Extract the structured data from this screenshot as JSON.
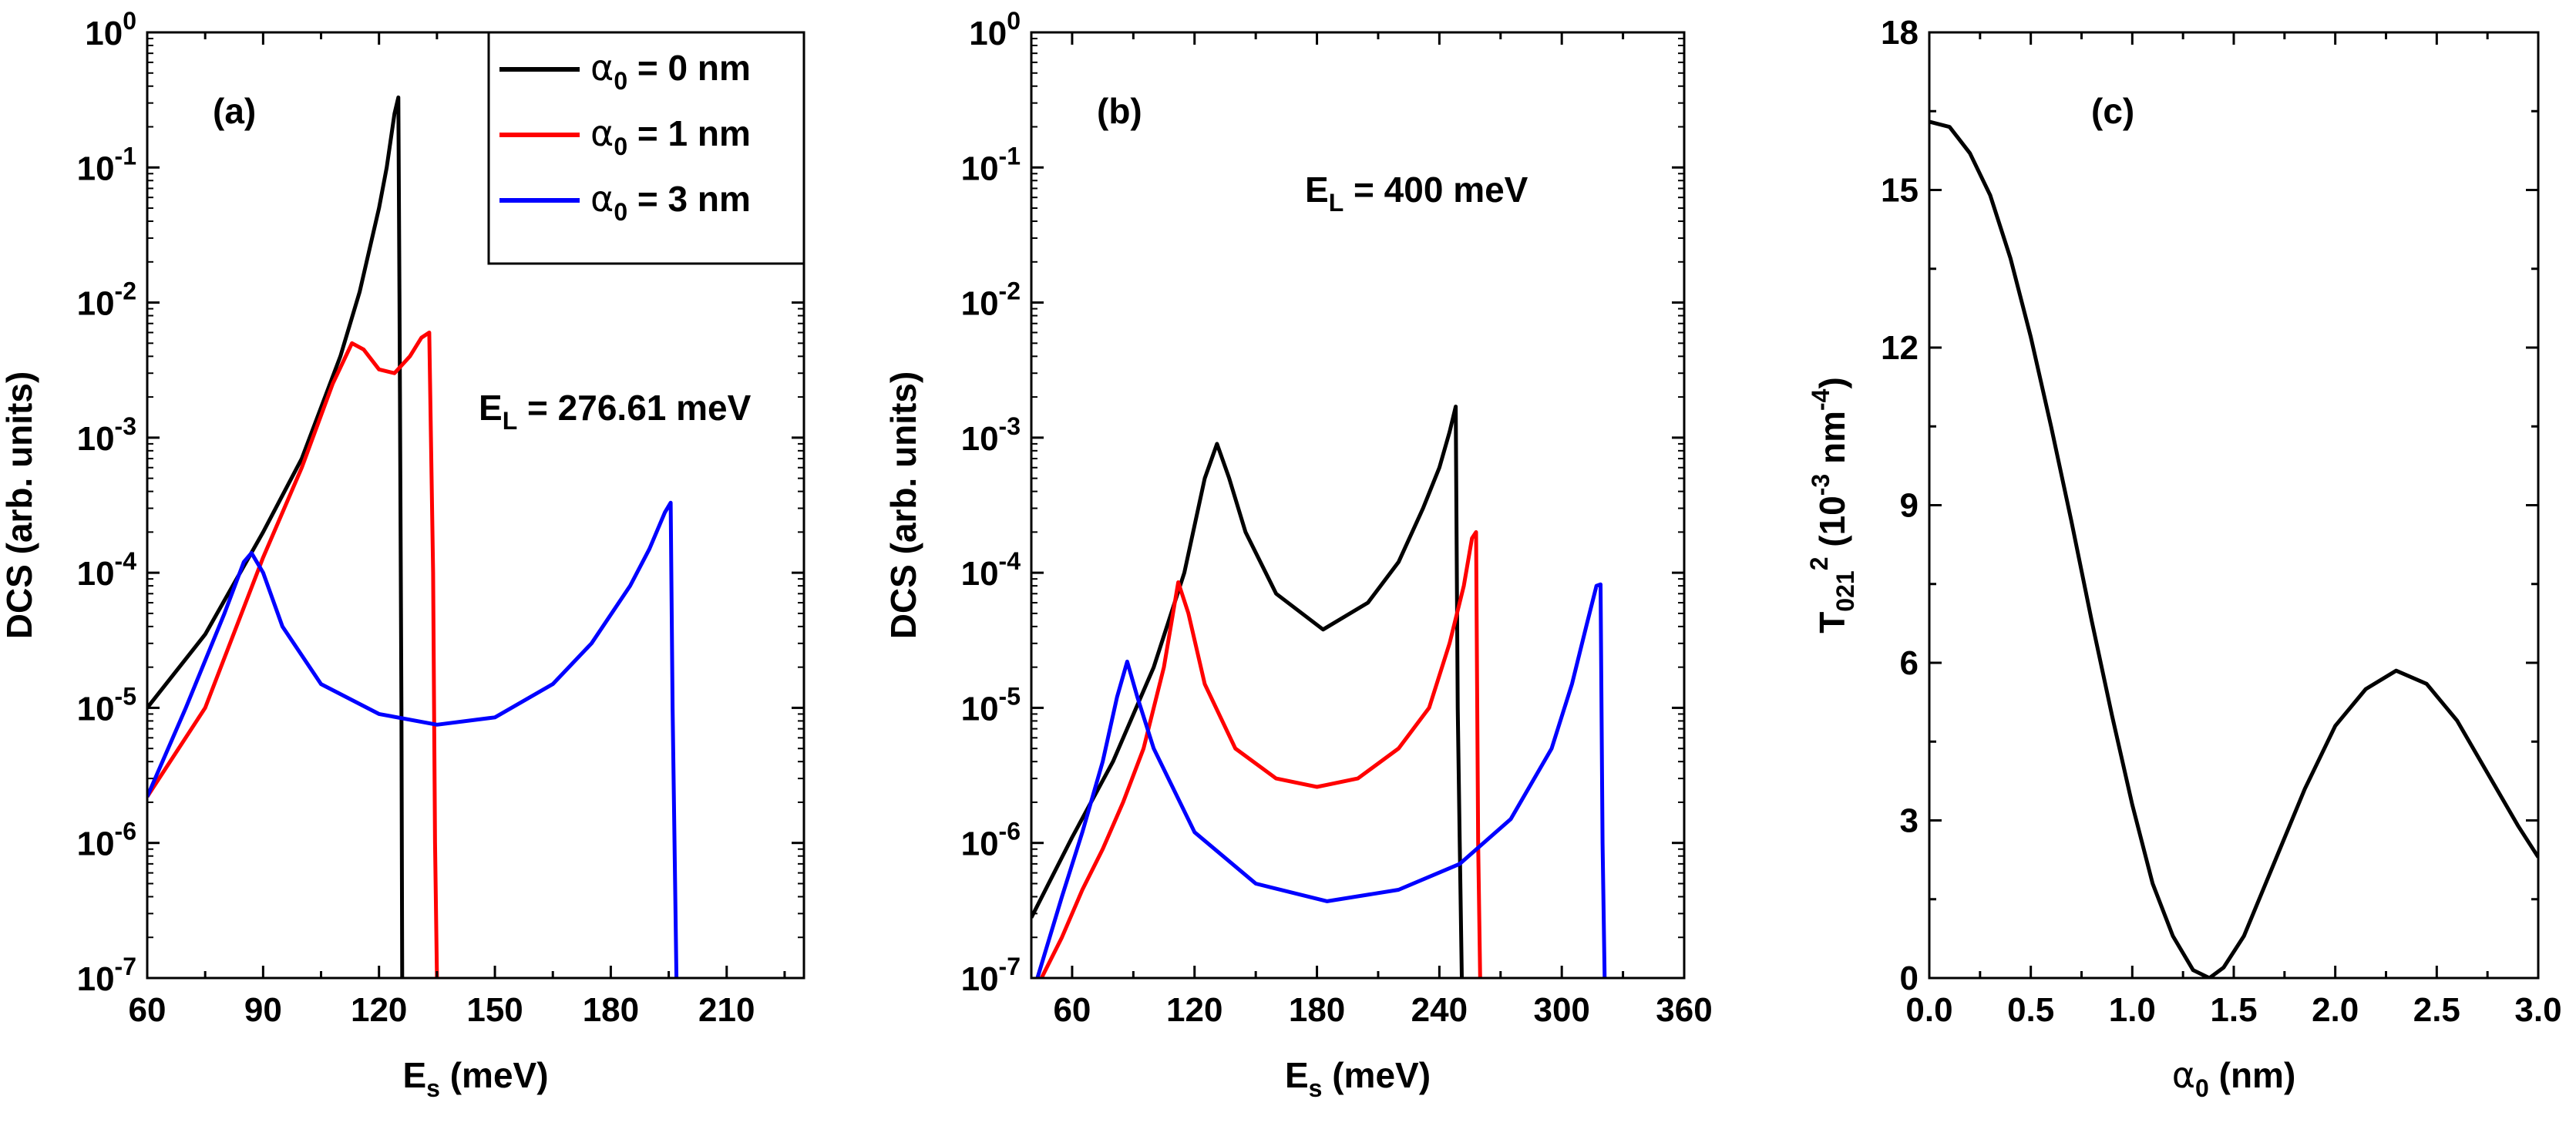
{
  "chart_data": [
    {
      "type": "line",
      "panel_label": "(a)",
      "xlabel_main": "E",
      "xlabel_sub": "s",
      "xlabel_unit": " (meV)",
      "ylabel": "DCS (arb. units)",
      "xscale": "linear",
      "yscale": "log",
      "xlim": [
        60,
        230
      ],
      "ylim": [
        1e-07,
        1
      ],
      "xticks": [
        60,
        90,
        120,
        150,
        180,
        210
      ],
      "xtick_labels": [
        "60",
        "90",
        "120",
        "150",
        "180",
        "210"
      ],
      "yticks": [
        1e-07,
        1e-06,
        1e-05,
        0.0001,
        0.001,
        0.01,
        0.1,
        1
      ],
      "ytick_labels": [
        {
          "base": "10",
          "exp": "-7"
        },
        {
          "base": "10",
          "exp": "-6"
        },
        {
          "base": "10",
          "exp": "-5"
        },
        {
          "base": "10",
          "exp": "-4"
        },
        {
          "base": "10",
          "exp": "-3"
        },
        {
          "base": "10",
          "exp": "-2"
        },
        {
          "base": "10",
          "exp": "-1"
        },
        {
          "base": "10",
          "exp": "0"
        }
      ],
      "annotation": {
        "main": "E",
        "sub": "L",
        "rest": " = 276.61 meV"
      },
      "legend": {
        "position": "top-right",
        "entries": [
          {
            "symbol": "α",
            "sub": "0",
            "rest": " = 0 nm",
            "color": "#000000"
          },
          {
            "symbol": "α",
            "sub": "0",
            "rest": " = 1 nm",
            "color": "#ff0000"
          },
          {
            "symbol": "α",
            "sub": "0",
            "rest": " = 3 nm",
            "color": "#0000ff"
          }
        ]
      },
      "series": [
        {
          "name": "α0 = 0 nm",
          "color": "#000000",
          "x": [
            60,
            75,
            90,
            100,
            110,
            115,
            120,
            122,
            124,
            125,
            125.3,
            125.8,
            126
          ],
          "y": [
            1e-05,
            3.5e-05,
            0.0002,
            0.0007,
            0.004,
            0.012,
            0.05,
            0.1,
            0.25,
            0.33,
            0.01,
            1e-05,
            1e-07
          ]
        },
        {
          "name": "α0 = 1 nm",
          "color": "#ff0000",
          "x": [
            60,
            75,
            90,
            100,
            108,
            113,
            116,
            120,
            124,
            128,
            131,
            133,
            134,
            134.5,
            135
          ],
          "y": [
            2.2e-06,
            1e-05,
            0.00013,
            0.0006,
            0.0025,
            0.005,
            0.0045,
            0.0032,
            0.003,
            0.004,
            0.0055,
            0.006,
            0.0001,
            1e-06,
            1e-07
          ]
        },
        {
          "name": "α0 = 3 nm",
          "color": "#0000ff",
          "x": [
            60,
            70,
            80,
            85,
            87,
            90,
            95,
            105,
            120,
            135,
            150,
            165,
            175,
            185,
            190,
            194,
            195.5,
            196,
            196.5,
            197
          ],
          "y": [
            2.2e-06,
            1e-05,
            5e-05,
            0.00012,
            0.00014,
            0.0001,
            4e-05,
            1.5e-05,
            9e-06,
            7.5e-06,
            8.5e-06,
            1.5e-05,
            3e-05,
            8e-05,
            0.00015,
            0.00028,
            0.00033,
            1e-05,
            1e-06,
            1e-07
          ]
        }
      ]
    },
    {
      "type": "line",
      "panel_label": "(b)",
      "xlabel_main": "E",
      "xlabel_sub": "s",
      "xlabel_unit": " (meV)",
      "ylabel": "DCS (arb. units)",
      "xscale": "linear",
      "yscale": "log",
      "xlim": [
        40,
        360
      ],
      "ylim": [
        1e-07,
        1
      ],
      "xticks": [
        60,
        120,
        180,
        240,
        300,
        360
      ],
      "xtick_labels": [
        "60",
        "120",
        "180",
        "240",
        "300",
        "360"
      ],
      "yticks": [
        1e-07,
        1e-06,
        1e-05,
        0.0001,
        0.001,
        0.01,
        0.1,
        1
      ],
      "ytick_labels": [
        {
          "base": "10",
          "exp": "-7"
        },
        {
          "base": "10",
          "exp": "-6"
        },
        {
          "base": "10",
          "exp": "-5"
        },
        {
          "base": "10",
          "exp": "-4"
        },
        {
          "base": "10",
          "exp": "-3"
        },
        {
          "base": "10",
          "exp": "-2"
        },
        {
          "base": "10",
          "exp": "-1"
        },
        {
          "base": "10",
          "exp": "0"
        }
      ],
      "annotation": {
        "main": "E",
        "sub": "L",
        "rest": " = 400 meV"
      },
      "series": [
        {
          "name": "α0 = 0 nm",
          "color": "#000000",
          "x": [
            40,
            60,
            80,
            100,
            115,
            125,
            131,
            137,
            145,
            160,
            183,
            205,
            220,
            232,
            240,
            245,
            248,
            249,
            250,
            251
          ],
          "y": [
            2.8e-07,
            1.1e-06,
            4e-06,
            2e-05,
            0.0001,
            0.0005,
            0.0009,
            0.0005,
            0.0002,
            7e-05,
            3.8e-05,
            6e-05,
            0.00012,
            0.0003,
            0.0006,
            0.0011,
            0.0017,
            1e-05,
            1e-06,
            1e-07
          ]
        },
        {
          "name": "α0 = 1 nm",
          "color": "#ff0000",
          "x": [
            45,
            55,
            65,
            75,
            85,
            95,
            105,
            112,
            117,
            125,
            140,
            160,
            180,
            200,
            220,
            235,
            245,
            252,
            256,
            258,
            259,
            260
          ],
          "y": [
            1e-07,
            2e-07,
            4.5e-07,
            9e-07,
            2e-06,
            5e-06,
            2e-05,
            8.5e-05,
            5e-05,
            1.5e-05,
            5e-06,
            3e-06,
            2.6e-06,
            3e-06,
            5e-06,
            1e-05,
            3e-05,
            8e-05,
            0.00018,
            0.0002,
            1e-06,
            1e-07
          ]
        },
        {
          "name": "α0 = 3 nm",
          "color": "#0000ff",
          "x": [
            43,
            55,
            65,
            75,
            82,
            87,
            92,
            100,
            120,
            150,
            185,
            220,
            250,
            275,
            295,
            305,
            312,
            317,
            319,
            320,
            321
          ],
          "y": [
            1e-07,
            4e-07,
            1.2e-06,
            4e-06,
            1.2e-05,
            2.2e-05,
            1.2e-05,
            5e-06,
            1.2e-06,
            5e-07,
            3.7e-07,
            4.5e-07,
            7e-07,
            1.5e-06,
            5e-06,
            1.5e-05,
            4e-05,
            8e-05,
            8.2e-05,
            1e-06,
            1e-07
          ]
        }
      ]
    },
    {
      "type": "line",
      "panel_label": "(c)",
      "xlabel_symbol": "α",
      "xlabel_sub": "0",
      "xlabel_unit": " (nm)",
      "ylabel_main": "T",
      "ylabel_sub": "021",
      "ylabel_sup": "2",
      "ylabel_rest1": " (10",
      "ylabel_sup2": "-3",
      "ylabel_rest2": " nm",
      "ylabel_sup3": "-4",
      "ylabel_rest3": ")",
      "xscale": "linear",
      "yscale": "linear",
      "xlim": [
        0,
        3
      ],
      "ylim": [
        0,
        18
      ],
      "xticks": [
        0,
        0.5,
        1,
        1.5,
        2,
        2.5,
        3
      ],
      "xtick_labels": [
        "0.0",
        "0.5",
        "1.0",
        "1.5",
        "2.0",
        "2.5",
        "3.0"
      ],
      "yticks": [
        0,
        3,
        6,
        9,
        12,
        15,
        18
      ],
      "ytick_labels": [
        "0",
        "3",
        "6",
        "9",
        "12",
        "15",
        "18"
      ],
      "series": [
        {
          "name": "T021^2",
          "color": "#000000",
          "x": [
            0,
            0.1,
            0.2,
            0.3,
            0.4,
            0.5,
            0.6,
            0.7,
            0.8,
            0.9,
            1.0,
            1.1,
            1.2,
            1.3,
            1.38,
            1.45,
            1.55,
            1.7,
            1.85,
            2.0,
            2.15,
            2.3,
            2.45,
            2.6,
            2.75,
            2.9,
            3.0
          ],
          "y": [
            16.3,
            16.2,
            15.7,
            14.9,
            13.7,
            12.2,
            10.5,
            8.7,
            6.8,
            5.0,
            3.3,
            1.8,
            0.8,
            0.15,
            0.0,
            0.2,
            0.8,
            2.2,
            3.6,
            4.8,
            5.5,
            5.85,
            5.6,
            4.9,
            3.9,
            2.9,
            2.3
          ]
        }
      ]
    }
  ]
}
